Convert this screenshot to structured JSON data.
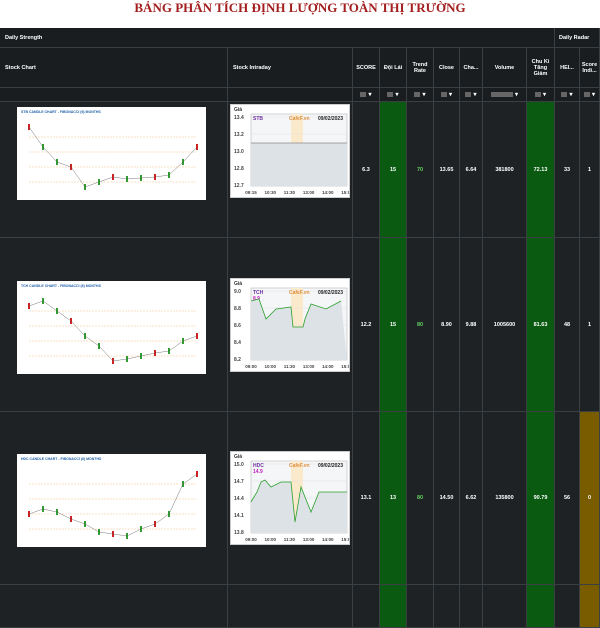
{
  "title": "BẢNG PHÂN TÍCH ĐỊNH LƯỢNG TOÀN THỊ TRƯỜNG",
  "header_groups": [
    "Daily Strength",
    "Daily Radar"
  ],
  "columns": [
    "Stock Chart",
    "Stock Intraday",
    "SCORE",
    "Đội Lái",
    "Trend Rate",
    "Close",
    "Cha...",
    "Volume",
    "Chu Kì Tăng Giảm",
    "HEI...",
    "Score Indi..."
  ],
  "rows": [
    {
      "candle_title": "STB CANDLE CHART - FIBONACCI (6) MONTHS",
      "intraday": {
        "y_label": "Giá",
        "ticker": "STB",
        "source": "CafeF.vn",
        "date": "09/02/2023",
        "yticks": [
          "13.4",
          "13.2",
          "13.0",
          "12.8",
          "12.7"
        ],
        "xticks": [
          "09:15",
          "10:30",
          "11:30",
          "13:00",
          "14:00",
          "15:00"
        ],
        "high": "",
        "low": "12.8"
      },
      "cells": [
        "6.3",
        "15",
        "70",
        "13.65",
        "6.64",
        "381800",
        "72.13",
        "33",
        "1"
      ]
    },
    {
      "candle_title": "TCH CANDLE CHART - FIBONACCI (6) MONTHS",
      "intraday": {
        "y_label": "Giá",
        "ticker": "TCH",
        "source": "CafeF.vn",
        "date": "09/02/2023",
        "yticks": [
          "9.0",
          "8.8",
          "8.6",
          "8.4",
          "8.2"
        ],
        "xticks": [
          "09:00",
          "10:00",
          "11:30",
          "13:00",
          "14:00",
          "15:00"
        ],
        "high": "8.9",
        "low": "8.1"
      },
      "cells": [
        "12.2",
        "15",
        "80",
        "8.90",
        "9.88",
        "1005600",
        "81.63",
        "48",
        "1"
      ]
    },
    {
      "candle_title": "HDC CANDLE CHART - FIBONACCI (6) MONTHS",
      "intraday": {
        "y_label": "Giá",
        "ticker": "HDC",
        "source": "CafeF.vn",
        "date": "09/02/2023",
        "yticks": [
          "15.0",
          "14.7",
          "14.4",
          "14.1",
          "13.8"
        ],
        "xticks": [
          "09:00",
          "10:00",
          "11:30",
          "13:00",
          "14:00",
          "15:00"
        ],
        "high": "14.9",
        "low": "13.6"
      },
      "cells": [
        "13.1",
        "13",
        "80",
        "14.50",
        "6.62",
        "135800",
        "90.79",
        "56",
        "0"
      ]
    }
  ]
}
